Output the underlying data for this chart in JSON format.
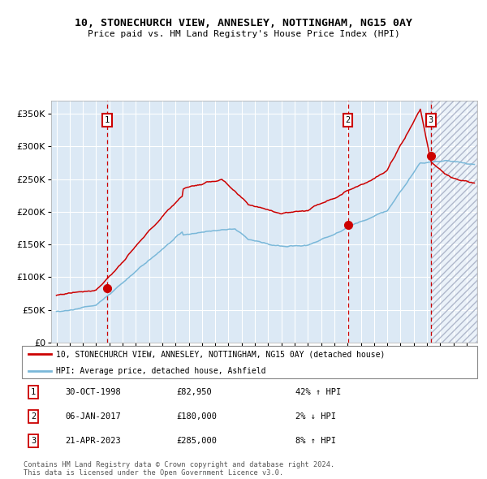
{
  "title": "10, STONECHURCH VIEW, ANNESLEY, NOTTINGHAM, NG15 0AY",
  "subtitle": "Price paid vs. HM Land Registry's House Price Index (HPI)",
  "xlim": [
    1994.6,
    2026.8
  ],
  "ylim": [
    0,
    370000
  ],
  "yticks": [
    0,
    50000,
    100000,
    150000,
    200000,
    250000,
    300000,
    350000
  ],
  "ytick_labels": [
    "£0",
    "£50K",
    "£100K",
    "£150K",
    "£200K",
    "£250K",
    "£300K",
    "£350K"
  ],
  "sale_dates": [
    1998.83,
    2017.02,
    2023.3
  ],
  "sale_prices": [
    82950,
    180000,
    285000
  ],
  "sale_labels": [
    "1",
    "2",
    "3"
  ],
  "legend_line1": "10, STONECHURCH VIEW, ANNESLEY, NOTTINGHAM, NG15 0AY (detached house)",
  "legend_line2": "HPI: Average price, detached house, Ashfield",
  "table_rows": [
    [
      "1",
      "30-OCT-1998",
      "£82,950",
      "42% ↑ HPI"
    ],
    [
      "2",
      "06-JAN-2017",
      "£180,000",
      "2% ↓ HPI"
    ],
    [
      "3",
      "21-APR-2023",
      "£285,000",
      "8% ↑ HPI"
    ]
  ],
  "footer": "Contains HM Land Registry data © Crown copyright and database right 2024.\nThis data is licensed under the Open Government Licence v3.0.",
  "hpi_color": "#7ab8d9",
  "price_color": "#cc0000",
  "bg_color": "#dce9f5",
  "grid_color": "#ffffff",
  "vline_color": "#cc0000",
  "hatch_region_start": 2023.3
}
